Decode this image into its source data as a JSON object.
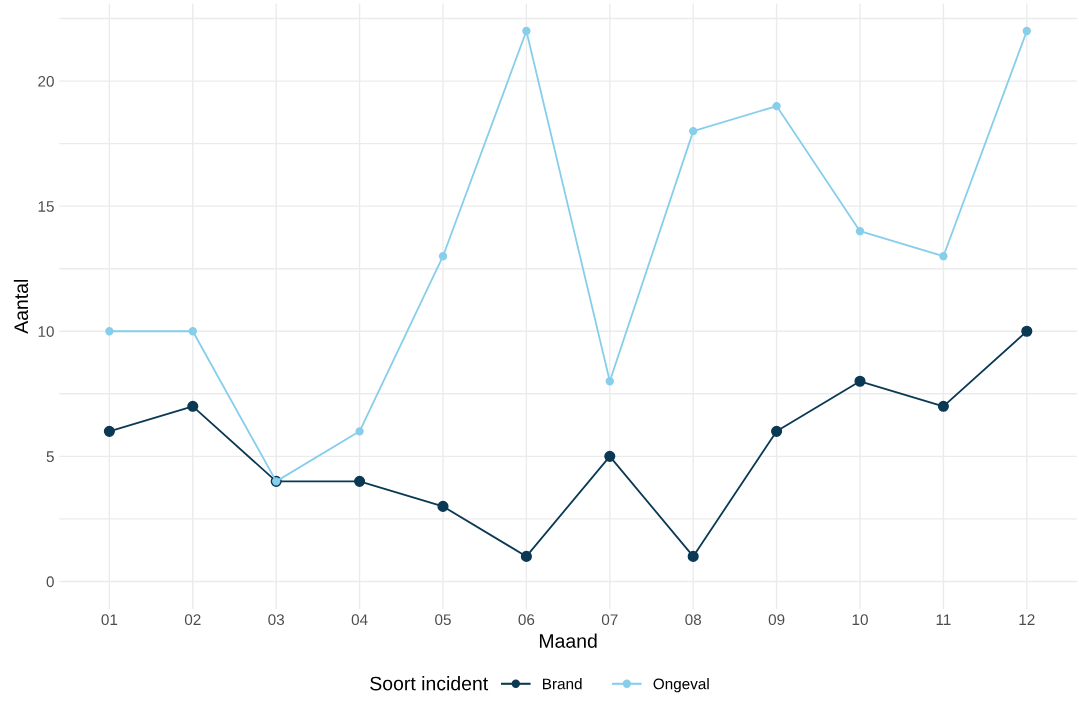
{
  "chart_data": {
    "type": "line",
    "xlabel": "Maand",
    "ylabel": "Aantal",
    "legend_title": "Soort incident",
    "categories": [
      "01",
      "02",
      "03",
      "04",
      "05",
      "06",
      "07",
      "08",
      "09",
      "10",
      "11",
      "12"
    ],
    "series": [
      {
        "name": "Brand",
        "color": "#0b3954",
        "values": [
          6,
          7,
          4,
          4,
          3,
          1,
          5,
          1,
          6,
          8,
          7,
          10
        ]
      },
      {
        "name": "Ongeval",
        "color": "#87ceeb",
        "values": [
          10,
          10,
          4,
          6,
          13,
          22,
          8,
          18,
          19,
          14,
          13,
          22
        ]
      }
    ],
    "ylim": [
      -1.1,
      23.1
    ],
    "yticks": [
      0,
      {
        "value": 2.5,
        "label": null
      },
      5,
      {
        "value": 7.5,
        "label": null
      },
      10,
      {
        "value": 12.5,
        "label": null
      },
      15,
      {
        "value": 17.5,
        "label": null
      },
      20,
      {
        "value": 22.5,
        "label": null
      }
    ],
    "grid": true,
    "legend": "bottom",
    "marker": "circle",
    "line_style": "solid"
  }
}
